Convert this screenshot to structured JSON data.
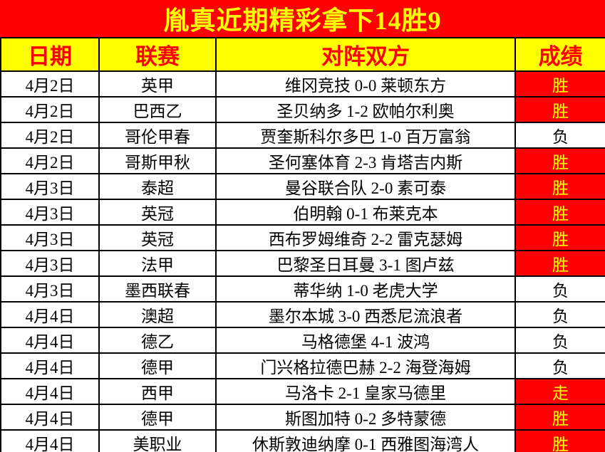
{
  "title": "胤真近期精彩拿下14胜9",
  "colors": {
    "title_bg": "#FF0000",
    "title_text": "#FFFF00",
    "header_bg": "#FFFF00",
    "header_text": "#FF0000",
    "win_cell_bg": "#FF0000",
    "win_cell_text": "#FFFF00",
    "loss_cell_bg": "#FFFFFF",
    "loss_cell_text": "#000000",
    "border": "#000000"
  },
  "table": {
    "headers": [
      "日期",
      "联赛",
      "对阵双方",
      "成绩"
    ],
    "rows": [
      {
        "date": "4月2日",
        "league": "英甲",
        "match": "维冈竞技 0-0 莱顿东方",
        "result": "胜",
        "highlight": true
      },
      {
        "date": "4月2日",
        "league": "巴西乙",
        "match": "圣贝纳多 1-2 欧帕尔利奥",
        "result": "胜",
        "highlight": true
      },
      {
        "date": "4月2日",
        "league": "哥伦甲春",
        "match": "贾奎斯科尔多巴 1-0 百万富翁",
        "result": "负",
        "highlight": false
      },
      {
        "date": "4月2日",
        "league": "哥斯甲秋",
        "match": "圣何塞体育 2-3 肯塔吉内斯",
        "result": "胜",
        "highlight": true
      },
      {
        "date": "4月3日",
        "league": "泰超",
        "match": "曼谷联合队 2-0 素可泰",
        "result": "胜",
        "highlight": true
      },
      {
        "date": "4月3日",
        "league": "英冠",
        "match": "伯明翰 0-1 布莱克本",
        "result": "胜",
        "highlight": true
      },
      {
        "date": "4月3日",
        "league": "英冠",
        "match": "西布罗姆维奇 2-2 雷克瑟姆",
        "result": "胜",
        "highlight": true
      },
      {
        "date": "4月3日",
        "league": "法甲",
        "match": "巴黎圣日耳曼 3-1 图卢兹",
        "result": "胜",
        "highlight": true
      },
      {
        "date": "4月3日",
        "league": "墨西联春",
        "match": "蒂华纳 1-0 老虎大学",
        "result": "负",
        "highlight": false
      },
      {
        "date": "4月4日",
        "league": "澳超",
        "match": "墨尔本城 3-0 西悉尼流浪者",
        "result": "负",
        "highlight": false
      },
      {
        "date": "4月4日",
        "league": "德乙",
        "match": "马格德堡 4-1 波鸿",
        "result": "负",
        "highlight": false
      },
      {
        "date": "4月4日",
        "league": "德甲",
        "match": "门兴格拉德巴赫 2-2 海登海姆",
        "result": "负",
        "highlight": false
      },
      {
        "date": "4月4日",
        "league": "西甲",
        "match": "马洛卡 2-1 皇家马德里",
        "result": "走",
        "highlight": true
      },
      {
        "date": "4月4日",
        "league": "德甲",
        "match": "斯图加特 0-2 多特蒙德",
        "result": "胜",
        "highlight": true
      },
      {
        "date": "4月4日",
        "league": "美职业",
        "match": "休斯敦迪纳摩 0-1 西雅图海湾人",
        "result": "胜",
        "highlight": true
      }
    ]
  }
}
